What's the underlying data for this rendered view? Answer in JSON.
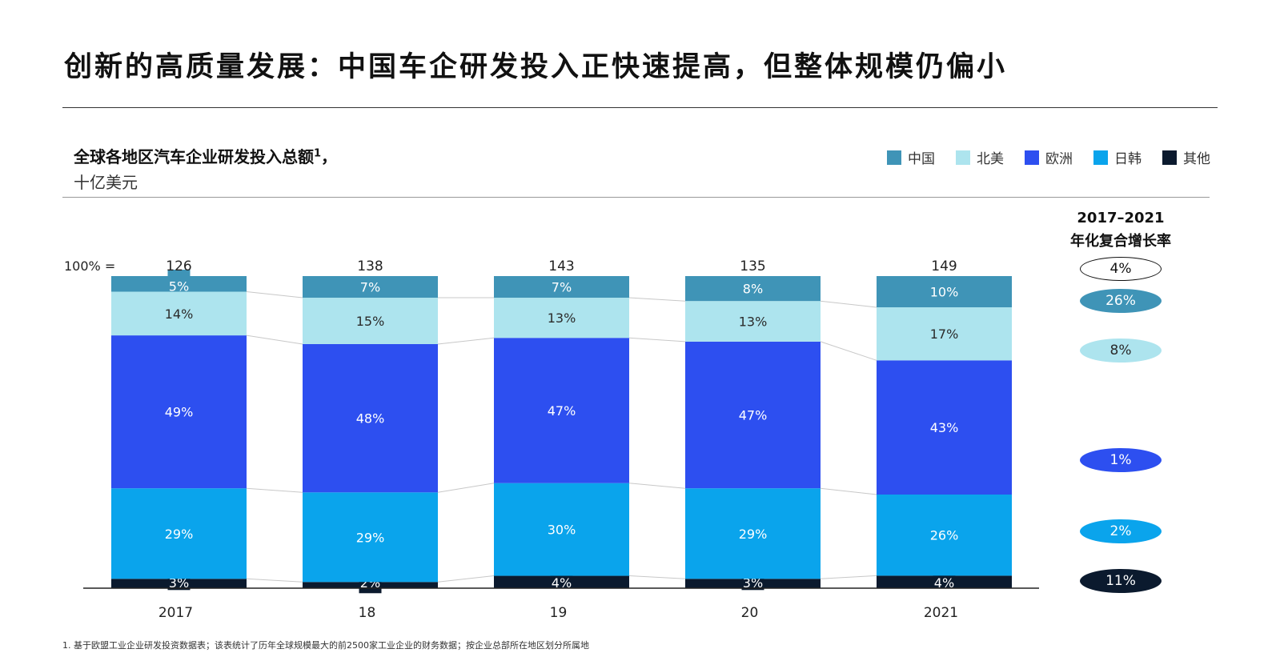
{
  "page": {
    "title": "创新的高质量发展：中国车企研发投入正快速提高，但整体规模仍偏小",
    "footnote": "1.  基于欧盟工业企业研发投资数据表；该表统计了历年全球规模最大的前2500家工业企业的财务数据；按企业总部所在地区划分所属地"
  },
  "chart_data": {
    "type": "bar",
    "stacked": "percent",
    "title": "全球各地区汽车企业研发投入总额",
    "title_footnote_mark": "1",
    "title_suffix": "，",
    "unit": "十亿美元",
    "total_prefix": "100% =",
    "categories": [
      "2017",
      "18",
      "19",
      "20",
      "2021"
    ],
    "totals": [
      "126",
      "138",
      "143",
      "135",
      "149"
    ],
    "series": [
      {
        "name": "其他",
        "color": "#0b1a2e",
        "text_color": "#ffffff",
        "values": [
          3,
          2,
          4,
          3,
          4
        ]
      },
      {
        "name": "日韩",
        "color": "#0aa4ec",
        "text_color": "#ffffff",
        "values": [
          29,
          29,
          30,
          29,
          26
        ]
      },
      {
        "name": "欧洲",
        "color": "#2d4ff0",
        "text_color": "#ffffff",
        "values": [
          49,
          48,
          47,
          47,
          43
        ]
      },
      {
        "name": "北美",
        "color": "#ade4ee",
        "text_color": "#2b2b2b",
        "values": [
          14,
          15,
          13,
          13,
          17
        ]
      },
      {
        "name": "中国",
        "color": "#3f94b7",
        "text_color": "#ffffff",
        "values": [
          5,
          7,
          7,
          8,
          10
        ]
      }
    ],
    "legend_order": [
      "中国",
      "北美",
      "欧洲",
      "日韩",
      "其他"
    ],
    "cagr": {
      "title_line1": "2017–2021",
      "title_line2": "年化复合增长率",
      "items": [
        {
          "label": "4%",
          "style": "outline"
        },
        {
          "label": "26%",
          "color": "#3f94b7",
          "text_color": "#ffffff"
        },
        {
          "label": "8%",
          "color": "#ade4ee",
          "text_color": "#2b2b2b"
        },
        {
          "label": "1%",
          "color": "#2d4ff0",
          "text_color": "#ffffff"
        },
        {
          "label": "2%",
          "color": "#0aa4ec",
          "text_color": "#ffffff"
        },
        {
          "label": "11%",
          "color": "#0b1a2e",
          "text_color": "#ffffff"
        }
      ]
    }
  }
}
